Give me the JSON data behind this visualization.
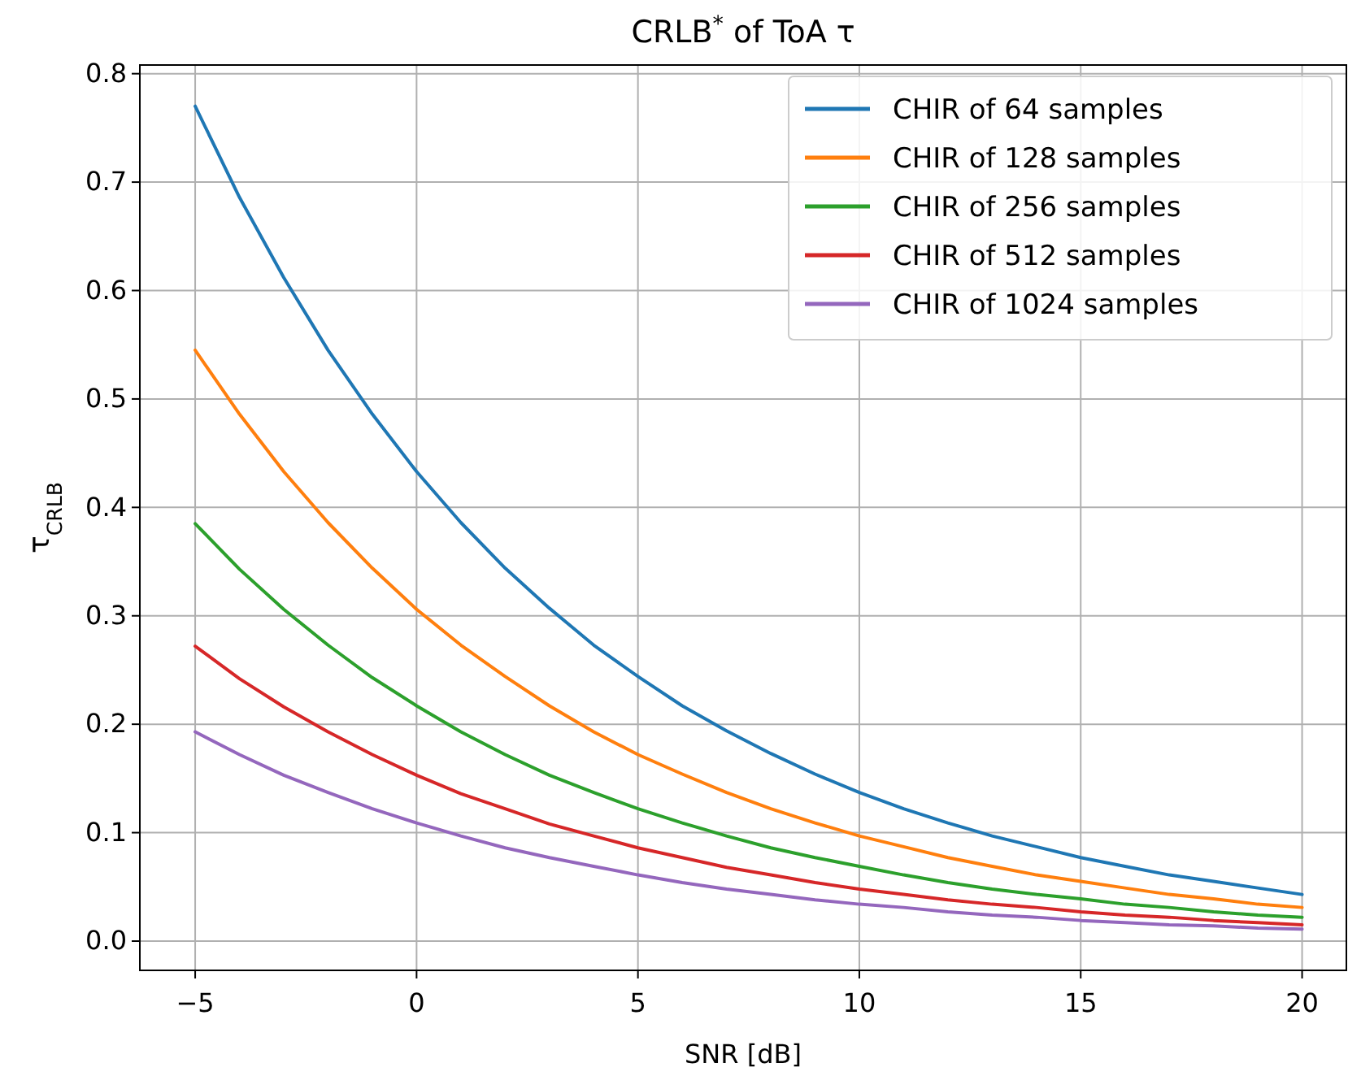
{
  "chart_data": {
    "type": "line",
    "title": "CRLB$^{*}$ of ToA τ",
    "xlabel": "SNR [dB]",
    "ylabel": "τ$_{CRLB}$",
    "x": [
      -5,
      -4,
      -3,
      -2,
      -1,
      0,
      1,
      2,
      3,
      4,
      5,
      6,
      7,
      8,
      9,
      10,
      11,
      12,
      13,
      14,
      15,
      16,
      17,
      18,
      19,
      20
    ],
    "series": [
      {
        "name": "CHIR of 64 samples",
        "color": "#1f77b4",
        "values": [
          0.77,
          0.686,
          0.612,
          0.545,
          0.486,
          0.433,
          0.386,
          0.344,
          0.307,
          0.273,
          0.244,
          0.217,
          0.194,
          0.173,
          0.154,
          0.137,
          0.122,
          0.109,
          0.097,
          0.087,
          0.077,
          0.069,
          0.061,
          0.055,
          0.049,
          0.043
        ]
      },
      {
        "name": "CHIR of 128 samples",
        "color": "#ff7f0e",
        "values": [
          0.545,
          0.486,
          0.433,
          0.386,
          0.344,
          0.306,
          0.273,
          0.244,
          0.217,
          0.193,
          0.172,
          0.154,
          0.137,
          0.122,
          0.109,
          0.097,
          0.087,
          0.077,
          0.069,
          0.061,
          0.055,
          0.049,
          0.043,
          0.039,
          0.034,
          0.031
        ]
      },
      {
        "name": "CHIR of 256 samples",
        "color": "#2ca02c",
        "values": [
          0.385,
          0.343,
          0.306,
          0.273,
          0.243,
          0.217,
          0.193,
          0.172,
          0.153,
          0.137,
          0.122,
          0.109,
          0.097,
          0.086,
          0.077,
          0.069,
          0.061,
          0.054,
          0.048,
          0.043,
          0.039,
          0.034,
          0.031,
          0.027,
          0.024,
          0.022
        ]
      },
      {
        "name": "CHIR of 512 samples",
        "color": "#d62728",
        "values": [
          0.272,
          0.242,
          0.216,
          0.193,
          0.172,
          0.153,
          0.136,
          0.122,
          0.108,
          0.097,
          0.086,
          0.077,
          0.068,
          0.061,
          0.054,
          0.048,
          0.043,
          0.038,
          0.034,
          0.031,
          0.027,
          0.024,
          0.022,
          0.019,
          0.017,
          0.015
        ]
      },
      {
        "name": "CHIR of 1024 samples",
        "color": "#9467bd",
        "values": [
          0.193,
          0.172,
          0.153,
          0.137,
          0.122,
          0.109,
          0.097,
          0.086,
          0.077,
          0.069,
          0.061,
          0.054,
          0.048,
          0.043,
          0.038,
          0.034,
          0.031,
          0.027,
          0.024,
          0.022,
          0.019,
          0.017,
          0.015,
          0.014,
          0.012,
          0.011
        ]
      }
    ],
    "xlim": [
      -6.25,
      21.0
    ],
    "ylim": [
      -0.027,
      0.808
    ],
    "xticks": [
      {
        "value": -5,
        "label": "−5"
      },
      0,
      5,
      10,
      15,
      20
    ],
    "yticks": [
      {
        "value": 0,
        "label": "0.0"
      },
      0.1,
      0.2,
      0.3,
      0.4,
      0.5,
      0.6,
      0.7,
      0.8
    ],
    "grid": true,
    "legend": "top right",
    "marker": "none",
    "line_style": "solid"
  }
}
